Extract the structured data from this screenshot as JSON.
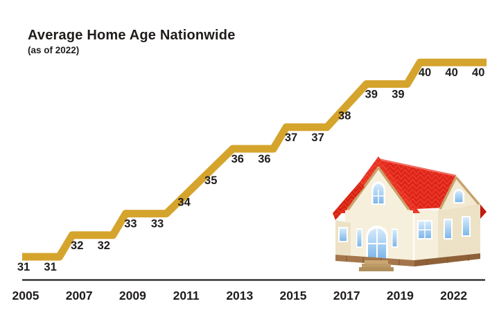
{
  "header": {
    "title": "Average Home Age Nationwide",
    "subtitle": "(as of 2022)"
  },
  "chart_data": {
    "type": "line",
    "subtype": "stepped",
    "title": "Average Home Age Nationwide",
    "subtitle": "(as of 2022)",
    "x": [
      2005,
      2006,
      2007,
      2008,
      2009,
      2010,
      2011,
      2012,
      2013,
      2014,
      2015,
      2016,
      2017,
      2018,
      2019,
      2020,
      2021,
      2022
    ],
    "values": [
      31,
      31,
      32,
      32,
      33,
      33,
      34,
      35,
      36,
      36,
      37,
      37,
      38,
      39,
      39,
      40,
      40,
      40
    ],
    "x_tick_labels": [
      "2005",
      "2007",
      "2009",
      "2011",
      "2013",
      "2015",
      "2017",
      "2019",
      "2022"
    ],
    "ylabel": "",
    "xlabel": "",
    "ylim": [
      30,
      41
    ],
    "grid": false,
    "legend": false,
    "data_labels_visible": true,
    "line_color": "#D5A42D",
    "label_color": "#1F1C1B",
    "axis_color": "#231F20"
  },
  "icons": {
    "house": "house-icon"
  }
}
